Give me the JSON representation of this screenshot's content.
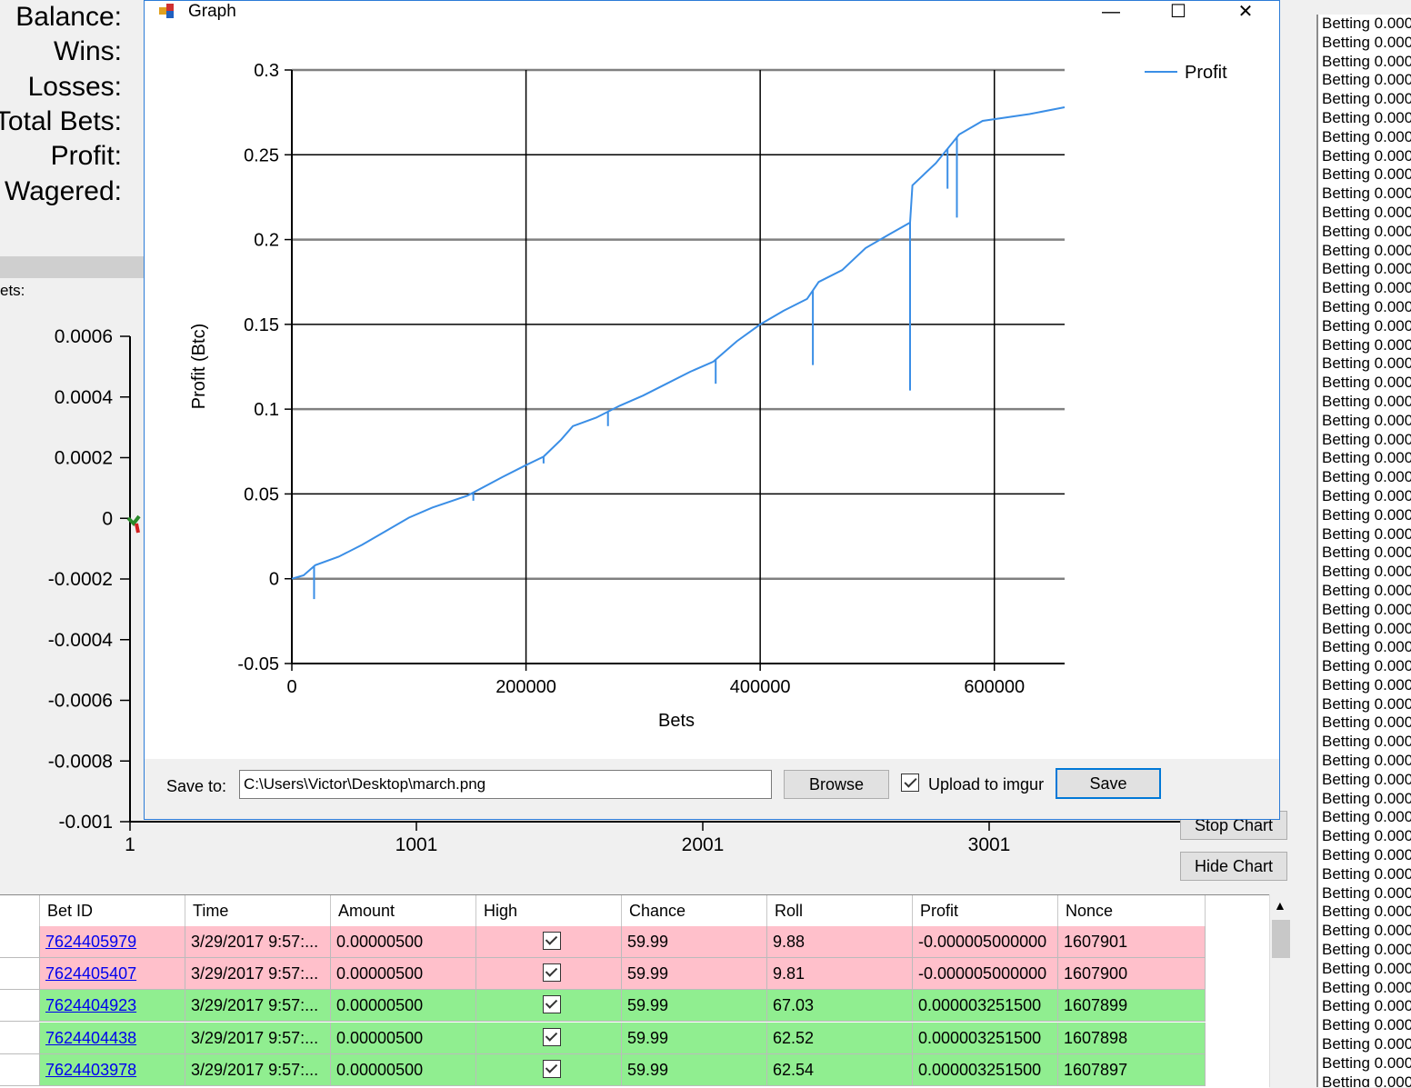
{
  "stats": {
    "balance_label": "Balance:",
    "wins_label": "Wins:",
    "losses_label": "Losses:",
    "total_bets_label": "Total Bets:",
    "profit_label": "Profit:",
    "wagered_label": "Wagered:",
    "bets_section_label": "ets:"
  },
  "bg_chart": {
    "y_ticks": [
      "0.0006",
      "0.0004",
      "0.0002",
      "0",
      "-0.0002",
      "-0.0004",
      "-0.0006",
      "-0.0008",
      "-0.001"
    ],
    "x_ticks": [
      "1",
      "1001",
      "2001",
      "3001"
    ]
  },
  "buttons": {
    "stop_chart": "Stop Chart",
    "hide_chart": "Hide Chart"
  },
  "log": {
    "line_text": "Betting 0.000"
  },
  "table": {
    "columns": [
      "Bet ID",
      "Time",
      "Amount",
      "High",
      "Chance",
      "Roll",
      "Profit",
      "Nonce"
    ],
    "rows": [
      {
        "bet_id": "7624405979",
        "time": "3/29/2017 9:57:...",
        "amount": "0.00000500",
        "high": true,
        "chance": "59.99",
        "roll": "9.88",
        "profit": "-0.000005000000",
        "nonce": "1607901",
        "result": "loss"
      },
      {
        "bet_id": "7624405407",
        "time": "3/29/2017 9:57:...",
        "amount": "0.00000500",
        "high": true,
        "chance": "59.99",
        "roll": "9.81",
        "profit": "-0.000005000000",
        "nonce": "1607900",
        "result": "loss"
      },
      {
        "bet_id": "7624404923",
        "time": "3/29/2017 9:57:...",
        "amount": "0.00000500",
        "high": true,
        "chance": "59.99",
        "roll": "67.03",
        "profit": "0.000003251500",
        "nonce": "1607899",
        "result": "win"
      },
      {
        "bet_id": "7624404438",
        "time": "3/29/2017 9:57:...",
        "amount": "0.00000500",
        "high": true,
        "chance": "59.99",
        "roll": "62.52",
        "profit": "0.000003251500",
        "nonce": "1607898",
        "result": "win"
      },
      {
        "bet_id": "7624403978",
        "time": "3/29/2017 9:57:...",
        "amount": "0.00000500",
        "high": true,
        "chance": "59.99",
        "roll": "62.54",
        "profit": "0.000003251500",
        "nonce": "1607897",
        "result": "win"
      }
    ],
    "colors": {
      "loss": "#ffc0cb",
      "win": "#90ee90"
    }
  },
  "graph_window": {
    "title": "Graph",
    "minimize": "—",
    "maximize": "☐",
    "close": "✕",
    "save_to_label": "Save to:",
    "save_path": "C:\\Users\\Victor\\Desktop\\march.png",
    "browse_label": "Browse",
    "upload_label": "Upload to imgur",
    "upload_checked": true,
    "save_label": "Save"
  },
  "chart_data": {
    "type": "line",
    "xlabel": "Bets",
    "ylabel": "Profit (Btc)",
    "xlim": [
      0,
      660000
    ],
    "ylim": [
      -0.05,
      0.3
    ],
    "x_ticks": [
      "0",
      "200000",
      "400000",
      "600000"
    ],
    "y_ticks": [
      "0.3",
      "0.25",
      "0.2",
      "0.15",
      "0.1",
      "0.05",
      "0",
      "-0.05"
    ],
    "grid": true,
    "legend_position": "top-right",
    "series": [
      {
        "name": "Profit",
        "color": "#3a8ee6",
        "x": [
          0,
          10000,
          20000,
          40000,
          60000,
          80000,
          100000,
          120000,
          150000,
          180000,
          200000,
          215000,
          230000,
          240000,
          260000,
          280000,
          300000,
          320000,
          340000,
          360000,
          380000,
          400000,
          420000,
          440000,
          450000,
          470000,
          490000,
          510000,
          528000,
          530000,
          550000,
          570000,
          590000,
          610000,
          630000,
          660000
        ],
        "y": [
          0,
          0.002,
          0.008,
          0.013,
          0.02,
          0.028,
          0.036,
          0.042,
          0.049,
          0.06,
          0.067,
          0.072,
          0.082,
          0.09,
          0.095,
          0.102,
          0.108,
          0.115,
          0.122,
          0.128,
          0.14,
          0.15,
          0.158,
          0.165,
          0.175,
          0.182,
          0.195,
          0.203,
          0.21,
          0.232,
          0.245,
          0.262,
          0.27,
          0.272,
          0.274,
          0.278
        ]
      }
    ],
    "spikes": [
      {
        "x": 19000,
        "y": -0.012
      },
      {
        "x": 155000,
        "y": 0.046
      },
      {
        "x": 215000,
        "y": 0.068
      },
      {
        "x": 270000,
        "y": 0.09
      },
      {
        "x": 362000,
        "y": 0.115
      },
      {
        "x": 445000,
        "y": 0.126
      },
      {
        "x": 528000,
        "y": 0.111
      },
      {
        "x": 560000,
        "y": 0.23
      },
      {
        "x": 568000,
        "y": 0.213
      }
    ]
  }
}
